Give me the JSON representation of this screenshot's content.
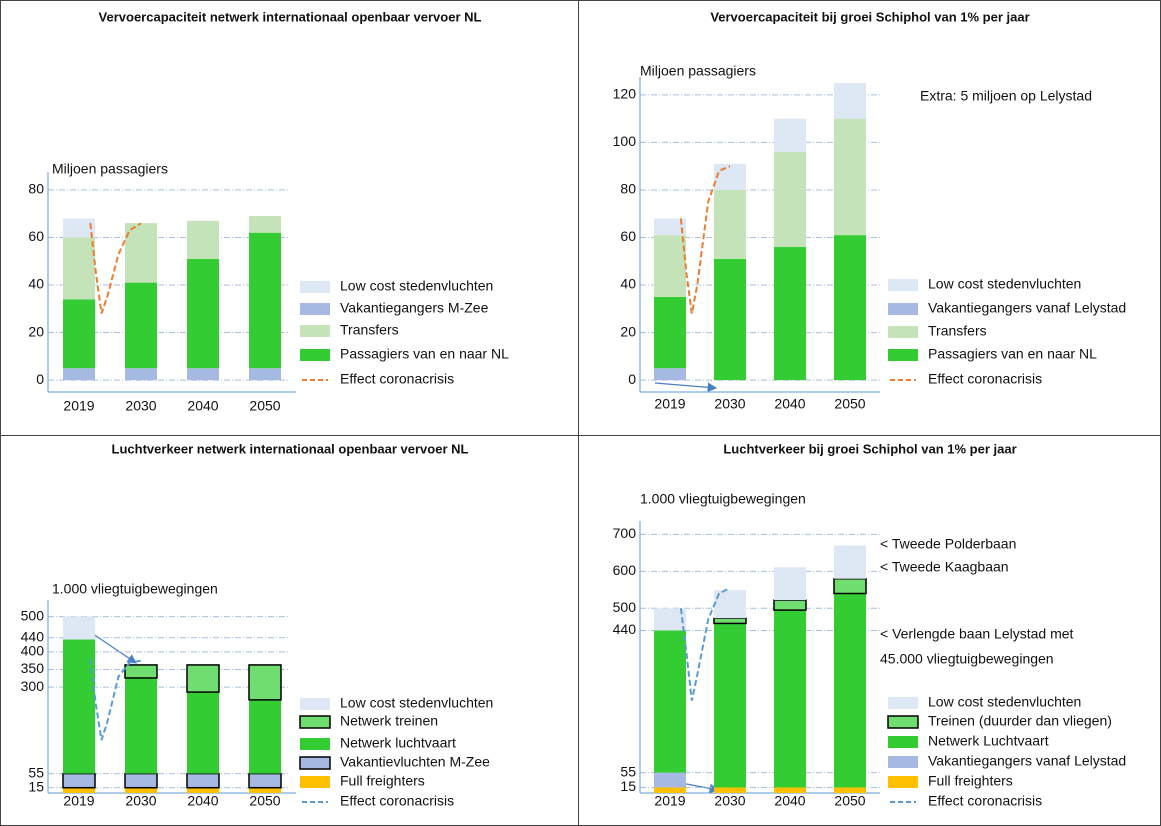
{
  "chart_data": [
    {
      "type": "bar",
      "stacked": true,
      "title": "Vervoercapaciteit netwerk internationaal openbaar vervoer NL",
      "ylabel": "Miljoen passagiers",
      "categories": [
        "2019",
        "2030",
        "2040",
        "2050"
      ],
      "ylim": [
        -5,
        85
      ],
      "yticks": [
        0,
        20,
        40,
        60,
        80
      ],
      "grid": true,
      "stack_order": [
        1,
        3,
        2,
        0
      ],
      "series": [
        {
          "name": "Low cost stedenvluchten",
          "color": "#dee7f4",
          "values": [
            8,
            0,
            0,
            0
          ]
        },
        {
          "name": "Vakantiegangers M-Zee",
          "color": "#a5b9e3",
          "values": [
            5,
            5,
            5,
            5
          ]
        },
        {
          "name": "Transfers",
          "color": "#c5e3b8",
          "values": [
            26,
            25,
            16,
            7
          ]
        },
        {
          "name": "Passagiers van en naar NL",
          "color": "#33cc33",
          "values": [
            29,
            36,
            46,
            57
          ]
        },
        {
          "name": "Effect coronacrisis",
          "type": "line",
          "dashed": true,
          "color": "#ed7d31",
          "x": [
            2021,
            2022,
            2023,
            2024,
            2026,
            2028,
            2030
          ],
          "values": [
            66,
            45,
            28,
            35,
            53,
            63,
            66
          ]
        }
      ]
    },
    {
      "type": "bar",
      "stacked": true,
      "title": "Vervoercapaciteit bij  groei Schiphol van 1% per jaar",
      "ylabel": "Miljoen passagiers",
      "annotations": [
        "Extra: 5 miljoen op Lelystad"
      ],
      "categories": [
        "2019",
        "2030",
        "2040",
        "2050"
      ],
      "ylim": [
        -5,
        125
      ],
      "yticks": [
        0,
        20,
        40,
        60,
        80,
        100,
        120
      ],
      "grid": true,
      "stack_order": [
        1,
        3,
        2,
        0
      ],
      "series": [
        {
          "name": "Low cost stedenvluchten",
          "color": "#dee7f4",
          "values": [
            7,
            11,
            14,
            15
          ]
        },
        {
          "name": "Vakantiegangers vanaf Lelystad",
          "color": "#a5b9e3",
          "values": [
            5,
            0,
            0,
            0
          ]
        },
        {
          "name": "Transfers",
          "color": "#c5e3b8",
          "values": [
            26,
            29,
            40,
            49
          ]
        },
        {
          "name": "Passagiers van en naar NL",
          "color": "#33cc33",
          "values": [
            30,
            51,
            56,
            61
          ]
        },
        {
          "name": "Effect coronacrisis",
          "type": "line",
          "dashed": true,
          "color": "#ed7d31",
          "x": [
            2021,
            2022,
            2023,
            2024,
            2026,
            2028,
            2030
          ],
          "values": [
            68,
            45,
            28,
            40,
            75,
            88,
            90
          ]
        }
      ]
    },
    {
      "type": "bar",
      "stacked": true,
      "title": "Luchtverkeer netwerk internationaal openbaar vervoer NL",
      "ylabel": "1.000 vliegtuigbewegingen",
      "categories": [
        "2019",
        "2030",
        "2040",
        "2050"
      ],
      "ylim": [
        0,
        530
      ],
      "yticks": [
        15,
        55,
        300,
        350,
        400,
        440,
        500
      ],
      "grid": true,
      "stack_order": [
        4,
        3,
        2,
        1,
        0
      ],
      "series": [
        {
          "name": "Low cost stedenvluchten",
          "color": "#dee7f4",
          "values": [
            65,
            0,
            0,
            0
          ]
        },
        {
          "name": "Netwerk treinen",
          "color": "#70dd70",
          "outline": "#000000",
          "values": [
            0,
            37,
            77,
            99
          ]
        },
        {
          "name": "Netwerk luchtvaart",
          "color": "#33cc33",
          "values": [
            380,
            271,
            231,
            209
          ]
        },
        {
          "name": "Vakantievluchten M-Zee",
          "color": "#a5b9e3",
          "outline": "#000000",
          "values": [
            40,
            40,
            40,
            40
          ]
        },
        {
          "name": "Full freighters",
          "color": "#ffc000",
          "values": [
            15,
            15,
            15,
            15
          ]
        },
        {
          "name": "Effect coronacrisis",
          "type": "line",
          "dashed": true,
          "color": "#5b9bd5",
          "x": [
            2021,
            2022,
            2023,
            2024,
            2026,
            2028,
            2030
          ],
          "values": [
            380,
            250,
            150,
            200,
            330,
            370,
            375
          ]
        }
      ]
    },
    {
      "type": "bar",
      "stacked": true,
      "title": "Luchtverkeer bij  groei Schiphol van 1% per jaar",
      "ylabel": "1.000 vliegtuigbewegingen",
      "annotations": [
        "< Tweede Polderbaan",
        "< Tweede Kaagbaan",
        "< Verlengde baan Lelystad met",
        "45.000 vliegtuigbewegingen"
      ],
      "categories": [
        "2019",
        "2030",
        "2040",
        "2050"
      ],
      "ylim": [
        0,
        720
      ],
      "yticks": [
        15,
        55,
        440,
        500,
        600,
        700
      ],
      "grid": true,
      "stack_order": [
        4,
        3,
        2,
        1,
        0
      ],
      "series": [
        {
          "name": "Low cost stedenvluchten",
          "color": "#dee7f4",
          "values": [
            60,
            76,
            89,
            90
          ]
        },
        {
          "name": "Treinen (duurder dan vliegen)",
          "color": "#70dd70",
          "outline": "#000000",
          "values": [
            0,
            14,
            27,
            40
          ]
        },
        {
          "name": "Netwerk Luchtvaart",
          "color": "#33cc33",
          "values": [
            385,
            444,
            480,
            525
          ]
        },
        {
          "name": "Vakantiegangers vanaf Lelystad",
          "color": "#a5b9e3",
          "values": [
            40,
            0,
            0,
            0
          ]
        },
        {
          "name": "Full freighters",
          "color": "#ffc000",
          "values": [
            15,
            15,
            15,
            15
          ]
        },
        {
          "name": "Effect coronacrisis",
          "type": "line",
          "dashed": true,
          "color": "#5b9bd5",
          "x": [
            2021,
            2022,
            2023,
            2024,
            2026,
            2028,
            2030
          ],
          "values": [
            500,
            380,
            250,
            320,
            470,
            540,
            555
          ]
        }
      ]
    }
  ]
}
